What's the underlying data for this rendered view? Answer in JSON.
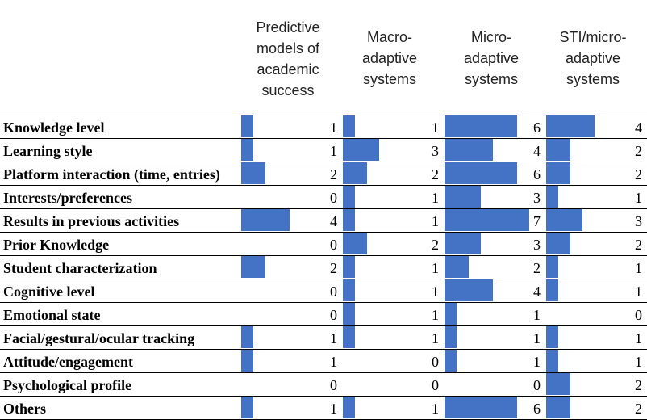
{
  "chart_data": {
    "type": "bar",
    "columns": [
      {
        "name": "Predictive models of academic success",
        "header_lines": [
          "Predictive",
          "models of",
          "academic",
          "success"
        ]
      },
      {
        "name": "Macro-adaptive systems",
        "header_lines": [
          "Macro-",
          "adaptive",
          "systems"
        ]
      },
      {
        "name": "Micro-adaptive systems",
        "header_lines": [
          "Micro-",
          "adaptive",
          "systems"
        ]
      },
      {
        "name": "STI/micro-adaptive systems",
        "header_lines": [
          "STI/micro-",
          "adaptive",
          "systems"
        ]
      }
    ],
    "categories": [
      "Knowledge level",
      "Learning style",
      "Platform interaction (time, entries)",
      "Interests/preferences",
      "Results in previous activities",
      "Prior Knowledge",
      "Student characterization",
      "Cognitive level",
      "Emotional state",
      "Facial/gestural/ocular tracking",
      "Attitude/engagement",
      "Psychological profile",
      "Others"
    ],
    "series": [
      {
        "name": "Predictive models of academic success",
        "values": [
          1,
          1,
          2,
          0,
          4,
          0,
          2,
          0,
          0,
          1,
          1,
          0,
          1
        ]
      },
      {
        "name": "Macro-adaptive systems",
        "values": [
          1,
          3,
          2,
          1,
          1,
          2,
          1,
          1,
          1,
          1,
          0,
          0,
          1
        ]
      },
      {
        "name": "Micro-adaptive systems",
        "values": [
          6,
          4,
          6,
          3,
          7,
          3,
          2,
          4,
          1,
          1,
          1,
          0,
          6
        ]
      },
      {
        "name": "STI/micro-adaptive systems",
        "values": [
          4,
          2,
          2,
          1,
          3,
          2,
          1,
          1,
          0,
          1,
          1,
          2,
          2
        ]
      }
    ],
    "max_value": 7,
    "bar_color": "#4472c4"
  }
}
